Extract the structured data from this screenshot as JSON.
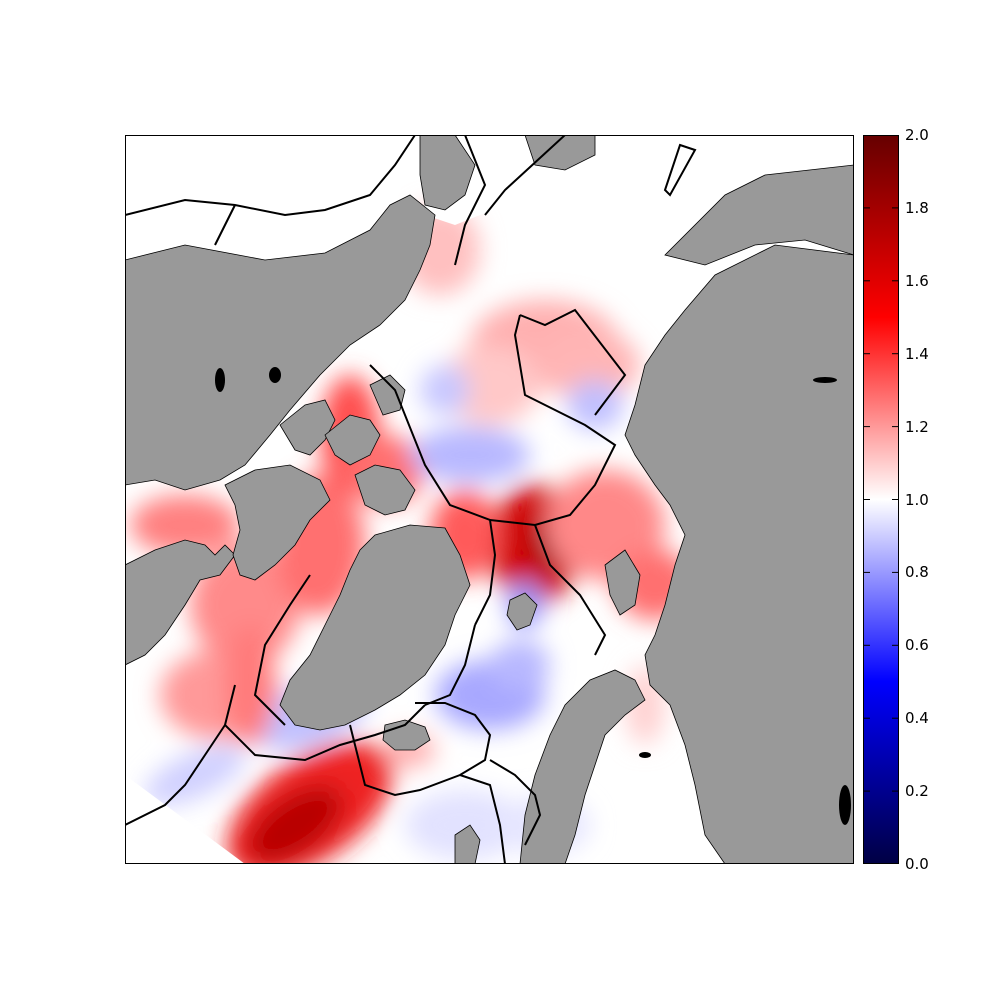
{
  "colorbar": {
    "ticks": [
      "0.0",
      "0.2",
      "0.4",
      "0.6",
      "0.8",
      "1.0",
      "1.2",
      "1.4",
      "1.6",
      "1.8",
      "2.0"
    ],
    "range": [
      0.0,
      2.0
    ],
    "colormap": [
      "#000044",
      "#0000ff",
      "#ffffff",
      "#ff0000",
      "#660000"
    ]
  },
  "colors": {
    "land": "#999999",
    "outside_domain": "#ffffff",
    "boundary_lines": "#000000"
  }
}
